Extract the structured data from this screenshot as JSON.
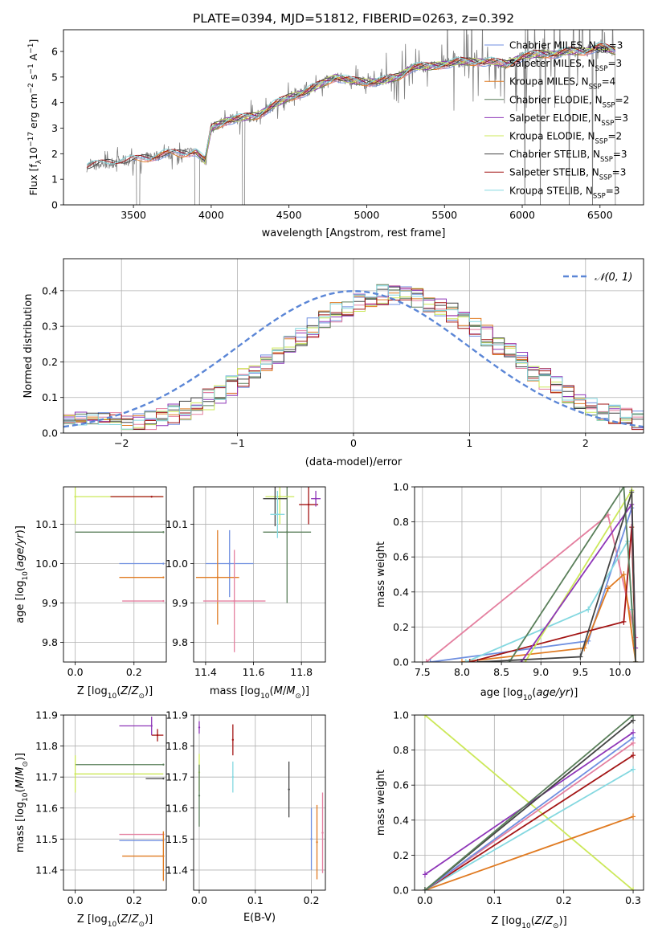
{
  "figure_title": "PLATE=0394, MJD=51812, FIBERID=0263, z=0.392",
  "colors": {
    "miles_chabrier": "#6f8fe0",
    "miles_salpeter": "#e47f9f",
    "miles_kroupa": "#e07b22",
    "elodie_chabrier": "#5a7f5a",
    "elodie_salpeter": "#8e36b8",
    "elodie_kroupa": "#cce85a",
    "stelib_chabrier": "#444444",
    "stelib_salpeter": "#a31515",
    "stelib_kroupa": "#84d8e0",
    "observed": "#808080",
    "gaussian": "#5b86d6",
    "grid": "#b0b0b0"
  },
  "chart_data": [
    {
      "id": "spectrum",
      "type": "line",
      "title": "PLATE=0394, MJD=51812, FIBERID=0263, z=0.392",
      "xlabel": "wavelength [Angstrom, rest frame]",
      "ylabel": "Flux [f$_\\lambda$10$^{-17}$ erg cm$^{-2}$ s$^{-1}$ A$^{-1}$]",
      "ylabel_main": "Flux [f",
      "ylabel_sub1": "λ",
      "ylabel_mid": "10",
      "ylabel_sup1": "−17",
      "ylabel_rest": " erg cm",
      "ylabel_sup2": "−2",
      "ylabel_rest2": " s",
      "ylabel_sup3": "−1",
      "ylabel_rest3": " A",
      "ylabel_sup4": "−1",
      "ylabel_end": "]",
      "xlim": [
        3050,
        6780
      ],
      "ylim": [
        0,
        6.85
      ],
      "xticks": [
        3500,
        4000,
        4500,
        5000,
        5500,
        6000,
        6500
      ],
      "yticks": [
        0,
        1,
        2,
        3,
        4,
        5,
        6
      ],
      "grid": false,
      "legend_position": "top-right",
      "continuum": {
        "x": [
          3200,
          3300,
          3400,
          3500,
          3600,
          3700,
          3800,
          3900,
          3960,
          4000,
          4100,
          4200,
          4300,
          4400,
          4500,
          4600,
          4700,
          4800,
          4900,
          5000,
          5100,
          5200,
          5300,
          5400,
          5500,
          5600,
          5700,
          5800,
          5900,
          6000,
          6100,
          6200,
          6300,
          6400,
          6500,
          6600
        ],
        "y": [
          1.5,
          1.6,
          1.7,
          1.75,
          1.85,
          2.0,
          2.0,
          2.1,
          1.7,
          3.0,
          3.3,
          3.4,
          3.5,
          3.9,
          4.2,
          4.4,
          4.7,
          5.0,
          4.85,
          4.8,
          4.85,
          5.0,
          5.4,
          5.4,
          5.5,
          5.6,
          5.6,
          5.6,
          5.5,
          5.8,
          5.9,
          5.9,
          6.0,
          6.0,
          6.2,
          6.0
        ]
      },
      "series": [
        {
          "name": "Chabrier MILES, N",
          "sub": "SSP",
          "suffix": "=3",
          "color": "#6f8fe0",
          "xstart": 3500
        },
        {
          "name": "Salpeter MILES, N",
          "sub": "SSP",
          "suffix": "=3",
          "color": "#e47f9f",
          "xstart": 3500
        },
        {
          "name": "Kroupa MILES, N",
          "sub": "SSP",
          "suffix": "=4",
          "color": "#e07b22",
          "xstart": 3500
        },
        {
          "name": "Chabrier ELODIE, N",
          "sub": "SSP",
          "suffix": "=2",
          "color": "#5a7f5a",
          "xstart": 3900
        },
        {
          "name": "Salpeter ELODIE, N",
          "sub": "SSP",
          "suffix": "=3",
          "color": "#8e36b8",
          "xstart": 3900
        },
        {
          "name": "Kroupa ELODIE, N",
          "sub": "SSP",
          "suffix": "=2",
          "color": "#cce85a",
          "xstart": 3900
        },
        {
          "name": "Chabrier STELIB, N",
          "sub": "SSP",
          "suffix": "=3",
          "color": "#444444",
          "xstart": 3200
        },
        {
          "name": "Salpeter STELIB, N",
          "sub": "SSP",
          "suffix": "=3",
          "color": "#a31515",
          "xstart": 3200
        },
        {
          "name": "Kroupa STELIB, N",
          "sub": "SSP",
          "suffix": "=3",
          "color": "#84d8e0",
          "xstart": 3200
        }
      ]
    },
    {
      "id": "residuals",
      "type": "line",
      "xlabel": "(data-model)/error",
      "ylabel": "Normed distribution",
      "xlim": [
        -2.5,
        2.5
      ],
      "ylim": [
        0,
        0.49
      ],
      "xticks": [
        -2,
        -1,
        0,
        1,
        2
      ],
      "yticks": [
        0.0,
        0.1,
        0.2,
        0.3,
        0.4
      ],
      "grid": true,
      "legend_position": "top-right",
      "gaussian_label": "𝒩(0, 1)",
      "bin_width": 0.1
    },
    {
      "id": "age_vs_Z",
      "type": "scatter",
      "xlabel": "Z [log$_{10}$(Z/Z$_\\odot$)]",
      "ylabel": "age  [log$_{10}$(age/yr)]",
      "xlim": [
        -0.04,
        0.31
      ],
      "ylim": [
        9.75,
        10.195
      ],
      "xticks": [
        0.0,
        0.2
      ],
      "yticks": [
        9.8,
        9.9,
        10.0,
        10.1
      ],
      "grid": true,
      "points": [
        {
          "x": 0.0,
          "y": 10.17,
          "color": "#cce85a",
          "xerr_lo": 0.0,
          "xerr_hi": 0.3,
          "yerr": 0.07
        },
        {
          "x": 0.26,
          "y": 10.17,
          "color": "#a31515",
          "xerr_lo": 0.14,
          "xerr_hi": 0.04
        },
        {
          "x": 0.3,
          "y": 10.08,
          "color": "#5a7f5a",
          "xerr_lo": 0.3,
          "xerr_hi": 0.0
        },
        {
          "x": 0.3,
          "y": 10.0,
          "color": "#6f8fe0",
          "xerr_lo": 0.15,
          "xerr_hi": 0.0
        },
        {
          "x": 0.3,
          "y": 9.965,
          "color": "#e07b22",
          "xerr_lo": 0.15,
          "xerr_hi": 0.0
        },
        {
          "x": 0.3,
          "y": 9.905,
          "color": "#e47f9f",
          "xerr_lo": 0.14,
          "xerr_hi": 0.0
        }
      ]
    },
    {
      "id": "age_vs_mass",
      "type": "scatter",
      "xlabel": "mass [log$_{10}$(M/M$_\\odot$)]",
      "ylabel": "",
      "xlim": [
        11.35,
        11.9
      ],
      "ylim": [
        9.75,
        10.195
      ],
      "xticks": [
        11.4,
        11.6,
        11.8
      ],
      "yticks": [
        9.8,
        9.9,
        10.0,
        10.1
      ],
      "grid": true,
      "points": [
        {
          "x": 11.5,
          "y": 10.0,
          "color": "#6f8fe0",
          "xerr": 0.1,
          "yerr": 0.085
        },
        {
          "x": 11.45,
          "y": 9.965,
          "color": "#e07b22",
          "xerr": 0.09,
          "yerr": 0.12
        },
        {
          "x": 11.52,
          "y": 9.905,
          "color": "#e47f9f",
          "xerr": 0.13,
          "yerr": 0.13
        },
        {
          "x": 11.74,
          "y": 10.08,
          "color": "#5a7f5a",
          "xerr": 0.1,
          "yerr": 0.18
        },
        {
          "x": 11.71,
          "y": 10.17,
          "color": "#cce85a",
          "xerr": 0.06,
          "yerr": 0.07
        },
        {
          "x": 11.69,
          "y": 10.165,
          "color": "#444444",
          "xerr": 0.05,
          "yerr": 0.07
        },
        {
          "x": 11.83,
          "y": 10.15,
          "color": "#a31515",
          "xerr": 0.04,
          "yerr": 0.05
        },
        {
          "x": 11.86,
          "y": 10.165,
          "color": "#8e36b8",
          "xerr": 0.02,
          "yerr": 0.02
        },
        {
          "x": 11.7,
          "y": 10.125,
          "color": "#84d8e0",
          "xerr": 0.03,
          "yerr": 0.06
        }
      ]
    },
    {
      "id": "mass_weight_vs_age",
      "type": "line",
      "xlabel": "age  [log$_{10}$(age/yr)]",
      "ylabel": "mass weight",
      "xlim": [
        7.4,
        10.3
      ],
      "ylim": [
        0.0,
        1.0
      ],
      "xticks": [
        7.5,
        8.0,
        8.5,
        9.0,
        9.5,
        10.0
      ],
      "yticks": [
        0.0,
        0.2,
        0.4,
        0.6,
        0.8,
        1.0
      ],
      "grid": true,
      "series": [
        {
          "color": "#e47f9f",
          "x": [
            7.55,
            9.85,
            10.2
          ],
          "y": [
            0.0,
            0.84,
            0.14
          ]
        },
        {
          "color": "#6f8fe0",
          "x": [
            7.6,
            9.6,
            10.15
          ],
          "y": [
            0.0,
            0.12,
            0.88
          ]
        },
        {
          "color": "#e07b22",
          "x": [
            8.0,
            9.55,
            9.85,
            10.05,
            10.2
          ],
          "y": [
            0.0,
            0.08,
            0.42,
            0.5,
            0.0
          ]
        },
        {
          "color": "#84d8e0",
          "x": [
            8.05,
            9.6,
            10.1,
            10.15
          ],
          "y": [
            0.0,
            0.3,
            0.69,
            0.3
          ]
        },
        {
          "color": "#a31515",
          "x": [
            8.1,
            10.05,
            10.15,
            10.2
          ],
          "y": [
            0.0,
            0.23,
            0.77,
            0.0
          ]
        },
        {
          "color": "#cce85a",
          "x": [
            8.8,
            10.15,
            10.2
          ],
          "y": [
            0.0,
            0.98,
            0.0
          ]
        },
        {
          "color": "#8e36b8",
          "x": [
            8.75,
            10.15,
            10.2
          ],
          "y": [
            0.0,
            0.9,
            0.08
          ]
        },
        {
          "color": "#5a7f5a",
          "x": [
            8.6,
            10.05,
            10.2
          ],
          "y": [
            0.0,
            1.0,
            0.0
          ]
        },
        {
          "color": "#444444",
          "x": [
            8.2,
            9.5,
            10.15,
            10.2
          ],
          "y": [
            0.0,
            0.03,
            0.97,
            0.0
          ]
        }
      ]
    },
    {
      "id": "mass_vs_Z",
      "type": "scatter",
      "xlabel": "Z [log$_{10}$(Z/Z$_\\odot$)]",
      "ylabel": "mass [log$_{10}$(M/M$_\\odot$)]",
      "xlim": [
        -0.04,
        0.31
      ],
      "ylim": [
        11.335,
        11.9
      ],
      "xticks": [
        0.0,
        0.2
      ],
      "yticks": [
        11.4,
        11.5,
        11.6,
        11.7,
        11.8,
        11.9
      ],
      "grid": true,
      "points": [
        {
          "x": 0.26,
          "y": 11.865,
          "color": "#8e36b8",
          "xerr_lo": 0.11,
          "xerr_hi": 0.0,
          "yerr": 0.03
        },
        {
          "x": 0.28,
          "y": 11.835,
          "color": "#a31515",
          "xerr_lo": 0.02,
          "xerr_hi": 0.02,
          "yerr": 0.02
        },
        {
          "x": 0.3,
          "y": 11.74,
          "color": "#5a7f5a",
          "xerr_lo": 0.3,
          "xerr_hi": 0.0
        },
        {
          "x": 0.0,
          "y": 11.71,
          "color": "#cce85a",
          "xerr_lo": 0.0,
          "xerr_hi": 0.3,
          "yerr": 0.06
        },
        {
          "x": 0.3,
          "y": 11.695,
          "color": "#444444",
          "xerr_lo": 0.06,
          "xerr_hi": 0.0
        },
        {
          "x": 0.3,
          "y": 11.515,
          "color": "#e47f9f",
          "xerr_lo": 0.15,
          "xerr_hi": 0.0
        },
        {
          "x": 0.3,
          "y": 11.495,
          "color": "#6f8fe0",
          "xerr_lo": 0.15,
          "xerr_hi": 0.0
        },
        {
          "x": 0.3,
          "y": 11.445,
          "color": "#e07b22",
          "xerr_lo": 0.14,
          "xerr_hi": 0.0,
          "yerr": 0.08
        }
      ]
    },
    {
      "id": "mass_vs_EBV",
      "type": "scatter",
      "xlabel": "E(B-V)",
      "ylabel": "",
      "xlim": [
        -0.01,
        0.225
      ],
      "ylim": [
        11.335,
        11.9
      ],
      "xticks": [
        0.0,
        0.1,
        0.2
      ],
      "yticks": [
        11.4,
        11.5,
        11.6,
        11.7,
        11.8,
        11.9
      ],
      "grid": true,
      "points": [
        {
          "x": 0.0,
          "y": 11.86,
          "color": "#8e36b8",
          "yerr": 0.02
        },
        {
          "x": 0.0,
          "y": 11.715,
          "color": "#cce85a",
          "yerr": 0.06
        },
        {
          "x": 0.0,
          "y": 11.64,
          "color": "#5a7f5a",
          "yerr": 0.1
        },
        {
          "x": 0.06,
          "y": 11.82,
          "color": "#a31515",
          "yerr": 0.05
        },
        {
          "x": 0.06,
          "y": 11.7,
          "color": "#84d8e0",
          "yerr": 0.05
        },
        {
          "x": 0.16,
          "y": 11.66,
          "color": "#444444",
          "yerr": 0.09
        },
        {
          "x": 0.2,
          "y": 11.5,
          "color": "#6f8fe0",
          "yerr": 0.1
        },
        {
          "x": 0.21,
          "y": 11.49,
          "color": "#e07b22",
          "yerr": 0.12
        },
        {
          "x": 0.22,
          "y": 11.52,
          "color": "#e47f9f",
          "yerr": 0.13
        }
      ]
    },
    {
      "id": "mass_weight_vs_Z",
      "type": "line",
      "xlabel": "Z [log$_{10}$(Z/Z$_\\odot$)]",
      "ylabel": "mass weight",
      "xlim": [
        -0.015,
        0.315
      ],
      "ylim": [
        0.0,
        1.0
      ],
      "xticks": [
        0.0,
        0.1,
        0.2,
        0.3
      ],
      "yticks": [
        0.0,
        0.2,
        0.4,
        0.6,
        0.8,
        1.0
      ],
      "grid": true,
      "series": [
        {
          "color": "#cce85a",
          "x": [
            0.0,
            0.3
          ],
          "y": [
            1.0,
            0.0
          ]
        },
        {
          "color": "#8e36b8",
          "x": [
            0.0,
            0.3
          ],
          "y": [
            0.09,
            0.9
          ]
        },
        {
          "color": "#e07b22",
          "x": [
            0.0,
            0.3
          ],
          "y": [
            0.0,
            0.42
          ]
        },
        {
          "color": "#84d8e0",
          "x": [
            0.0,
            0.3
          ],
          "y": [
            0.0,
            0.69
          ]
        },
        {
          "color": "#a31515",
          "x": [
            0.0,
            0.3
          ],
          "y": [
            0.0,
            0.77
          ]
        },
        {
          "color": "#e47f9f",
          "x": [
            0.0,
            0.3
          ],
          "y": [
            0.0,
            0.84
          ]
        },
        {
          "color": "#6f8fe0",
          "x": [
            0.0,
            0.3
          ],
          "y": [
            0.0,
            0.87
          ]
        },
        {
          "color": "#444444",
          "x": [
            0.0,
            0.3
          ],
          "y": [
            0.0,
            0.97
          ]
        },
        {
          "color": "#5a7f5a",
          "x": [
            0.0,
            0.3
          ],
          "y": [
            0.0,
            1.0
          ]
        }
      ]
    }
  ]
}
